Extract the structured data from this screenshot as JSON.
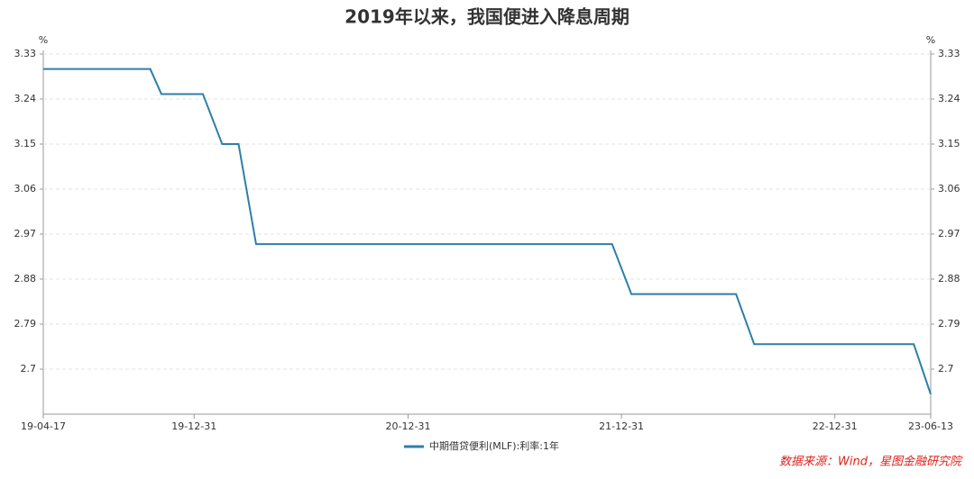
{
  "chart_data": {
    "type": "line",
    "title": "2019年以来，我国便进入降息周期",
    "y_unit": "%",
    "source": "数据来源：Wind，星图金融研究院",
    "x": [
      "19-04-17",
      "19-10-17",
      "19-11-05",
      "20-01-15",
      "20-02-17",
      "20-03-16",
      "20-04-15",
      "21-12-15",
      "22-01-17",
      "22-07-15",
      "22-08-15",
      "23-05-15",
      "23-06-13"
    ],
    "series": [
      {
        "name": "中期借贷便利(MLF):利率:1年",
        "color": "#2e7fa8",
        "values": [
          3.3,
          3.3,
          3.25,
          3.25,
          3.15,
          3.15,
          2.95,
          2.95,
          2.85,
          2.85,
          2.75,
          2.75,
          2.65
        ]
      }
    ],
    "xlim": [
      "19-04-17",
      "23-06-13"
    ],
    "xticks": [
      "19-04-17",
      "19-12-31",
      "20-12-31",
      "21-12-31",
      "22-12-31",
      "23-06-13"
    ],
    "ylim": [
      2.61,
      3.33
    ],
    "yticks": [
      2.7,
      2.79,
      2.88,
      2.97,
      3.06,
      3.15,
      3.24,
      3.33
    ],
    "grid": true
  }
}
